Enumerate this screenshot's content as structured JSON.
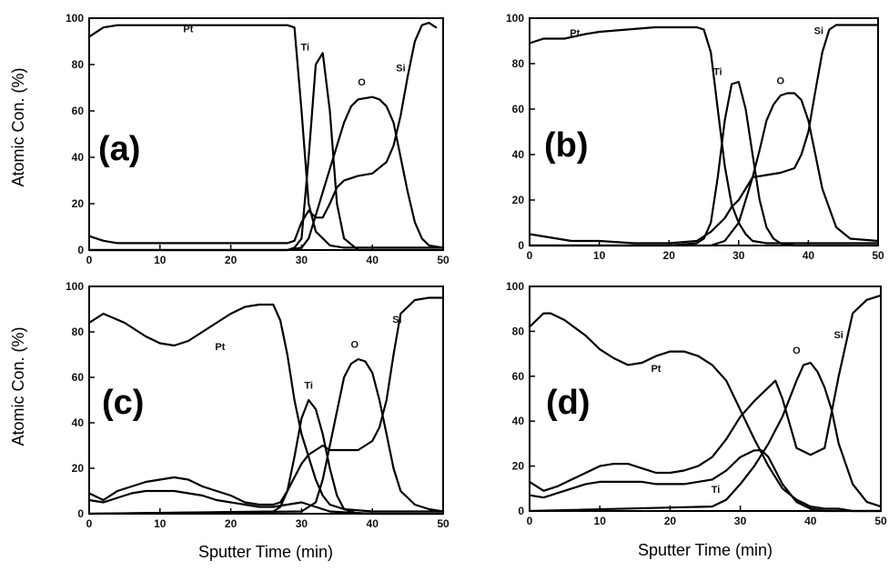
{
  "figure": {
    "ylabel": "Atomic Con. (%)",
    "xlabel": "Sputter Time (min)"
  },
  "chart_data": [
    {
      "type": "line",
      "panel_label": "(a)",
      "xlim": [
        0,
        50
      ],
      "ylim": [
        0,
        100
      ],
      "xticks": [
        0,
        10,
        20,
        30,
        40,
        50
      ],
      "yticks": [
        0,
        20,
        40,
        60,
        80,
        100
      ],
      "series": [
        {
          "name": "Pt",
          "x": [
            0,
            2,
            4,
            10,
            20,
            25,
            27,
            28,
            29,
            30,
            31,
            32,
            34,
            36,
            40,
            50
          ],
          "y": [
            92,
            96,
            97,
            97,
            97,
            97,
            97,
            97,
            96,
            60,
            20,
            8,
            2,
            1,
            1,
            1
          ]
        },
        {
          "name": "Ti",
          "x": [
            0,
            20,
            28,
            29,
            30,
            31,
            32,
            33,
            34,
            35,
            36,
            38,
            50
          ],
          "y": [
            0,
            0,
            0,
            1,
            5,
            40,
            80,
            85,
            60,
            20,
            5,
            0,
            0
          ]
        },
        {
          "name": "O",
          "x": [
            0,
            28,
            30,
            31,
            32,
            33,
            34,
            35,
            36,
            37,
            38,
            40,
            41,
            42,
            43,
            44,
            45,
            46,
            47,
            48,
            50
          ],
          "y": [
            0,
            0,
            1,
            5,
            15,
            25,
            35,
            45,
            55,
            62,
            65,
            66,
            65,
            62,
            55,
            40,
            25,
            12,
            5,
            2,
            1
          ]
        },
        {
          "name": "Si",
          "x": [
            0,
            2,
            4,
            10,
            20,
            28,
            29,
            30,
            31,
            32,
            33,
            34,
            35,
            36,
            38,
            40,
            42,
            43,
            44,
            45,
            46,
            47,
            48,
            49
          ],
          "y": [
            6,
            4,
            3,
            3,
            3,
            3,
            4,
            12,
            17,
            14,
            14,
            20,
            27,
            30,
            32,
            33,
            38,
            45,
            58,
            75,
            90,
            97,
            98,
            96
          ]
        }
      ],
      "labels": [
        {
          "text": "Pt",
          "x": 14,
          "y": 94
        },
        {
          "text": "Ti",
          "x": 30.5,
          "y": 86
        },
        {
          "text": "O",
          "x": 38.5,
          "y": 71
        },
        {
          "text": "Si",
          "x": 44,
          "y": 77
        }
      ]
    },
    {
      "type": "line",
      "panel_label": "(b)",
      "xlim": [
        0,
        50
      ],
      "ylim": [
        0,
        100
      ],
      "xticks": [
        0,
        10,
        20,
        30,
        40,
        50
      ],
      "yticks": [
        0,
        20,
        40,
        60,
        80,
        100
      ],
      "series": [
        {
          "name": "Pt",
          "x": [
            0,
            2,
            5,
            8,
            10,
            14,
            18,
            22,
            24,
            25,
            26,
            27,
            28,
            29,
            30,
            31,
            32,
            34,
            40,
            50
          ],
          "y": [
            89,
            91,
            91,
            93,
            94,
            95,
            96,
            96,
            96,
            95,
            85,
            60,
            35,
            18,
            10,
            5,
            2,
            1,
            1,
            1
          ]
        },
        {
          "name": "Ti",
          "x": [
            0,
            20,
            24,
            25,
            26,
            27,
            28,
            29,
            30,
            31,
            32,
            33,
            34,
            35,
            36,
            38,
            50
          ],
          "y": [
            0,
            0,
            1,
            3,
            10,
            30,
            55,
            71,
            72,
            60,
            40,
            20,
            8,
            3,
            1,
            0,
            0
          ]
        },
        {
          "name": "O",
          "x": [
            0,
            26,
            28,
            30,
            31,
            32,
            33,
            34,
            35,
            36,
            37,
            38,
            39,
            40,
            41,
            42,
            44,
            46,
            50
          ],
          "y": [
            0,
            0,
            2,
            10,
            20,
            30,
            42,
            55,
            62,
            66,
            67,
            67,
            64,
            55,
            40,
            25,
            8,
            3,
            2
          ]
        },
        {
          "name": "Si",
          "x": [
            0,
            2,
            4,
            6,
            8,
            10,
            15,
            20,
            24,
            26,
            28,
            29,
            30,
            31,
            32,
            34,
            36,
            38,
            39,
            40,
            41,
            42,
            43,
            44,
            46,
            50
          ],
          "y": [
            5,
            4,
            3,
            2,
            2,
            2,
            1,
            1,
            2,
            6,
            12,
            17,
            20,
            25,
            30,
            31,
            32,
            34,
            40,
            50,
            68,
            85,
            95,
            97,
            97,
            97
          ]
        }
      ],
      "labels": [
        {
          "text": "Pt",
          "x": 6.5,
          "y": 92
        },
        {
          "text": "Ti",
          "x": 27,
          "y": 75
        },
        {
          "text": "O",
          "x": 36,
          "y": 71
        },
        {
          "text": "Si",
          "x": 41.5,
          "y": 93
        }
      ]
    },
    {
      "type": "line",
      "panel_label": "(c)",
      "xlim": [
        0,
        50
      ],
      "ylim": [
        0,
        100
      ],
      "xticks": [
        0,
        10,
        20,
        30,
        40,
        50
      ],
      "yticks": [
        0,
        20,
        40,
        60,
        80,
        100
      ],
      "series": [
        {
          "name": "Pt",
          "x": [
            0,
            2,
            5,
            8,
            10,
            12,
            14,
            16,
            18,
            20,
            22,
            24,
            26,
            27,
            28,
            29,
            30,
            31,
            32,
            33,
            34,
            36,
            40,
            50
          ],
          "y": [
            84,
            88,
            84,
            78,
            75,
            74,
            76,
            80,
            84,
            88,
            91,
            92,
            92,
            85,
            70,
            50,
            35,
            25,
            15,
            8,
            4,
            2,
            1,
            1
          ]
        },
        {
          "name": "Ti",
          "x": [
            0,
            26,
            27,
            28,
            29,
            30,
            31,
            32,
            33,
            34,
            35,
            36,
            38,
            50
          ],
          "y": [
            0,
            1,
            3,
            10,
            25,
            42,
            50,
            46,
            35,
            20,
            8,
            2,
            0,
            0
          ]
        },
        {
          "name": "O",
          "x": [
            0,
            30,
            32,
            33,
            34,
            35,
            36,
            37,
            38,
            39,
            40,
            41,
            42,
            43,
            44,
            46,
            48,
            50
          ],
          "y": [
            0,
            1,
            5,
            15,
            30,
            45,
            60,
            66,
            68,
            67,
            62,
            50,
            35,
            20,
            10,
            4,
            2,
            1
          ]
        },
        {
          "name": "Si",
          "x": [
            0,
            2,
            4,
            8,
            10,
            12,
            14,
            16,
            18,
            20,
            22,
            24,
            26,
            27,
            28,
            29,
            30,
            31,
            32,
            33,
            34,
            35,
            36,
            37,
            38,
            39,
            40,
            41,
            42,
            43,
            44,
            46,
            48,
            50
          ],
          "y": [
            9,
            6,
            10,
            14,
            15,
            16,
            15,
            12,
            10,
            8,
            5,
            4,
            4,
            5,
            10,
            16,
            22,
            26,
            28,
            30,
            28,
            28,
            28,
            28,
            28,
            30,
            32,
            38,
            50,
            70,
            88,
            94,
            95,
            95
          ]
        },
        {
          "name": "",
          "x": [
            0,
            2,
            4,
            6,
            8,
            10,
            12,
            14,
            16,
            18,
            20,
            22,
            24,
            26,
            28,
            30,
            32,
            34,
            40,
            50
          ],
          "y": [
            6,
            5,
            7,
            9,
            10,
            10,
            10,
            9,
            8,
            6,
            5,
            4,
            3,
            3,
            4,
            5,
            3,
            1,
            0,
            0
          ]
        }
      ],
      "labels": [
        {
          "text": "Pt",
          "x": 18.5,
          "y": 72
        },
        {
          "text": "Ti",
          "x": 31,
          "y": 55
        },
        {
          "text": "O",
          "x": 37.5,
          "y": 73
        },
        {
          "text": "Si",
          "x": 43.5,
          "y": 84
        }
      ]
    },
    {
      "type": "line",
      "panel_label": "(d)",
      "xlim": [
        0,
        50
      ],
      "ylim": [
        0,
        100
      ],
      "xticks": [
        0,
        10,
        20,
        30,
        40,
        50
      ],
      "yticks": [
        0,
        20,
        40,
        60,
        80,
        100
      ],
      "series": [
        {
          "name": "Pt",
          "x": [
            0,
            2,
            3,
            5,
            8,
            10,
            12,
            14,
            16,
            18,
            20,
            22,
            24,
            26,
            28,
            30,
            32,
            34,
            36,
            38,
            40,
            42,
            44,
            46,
            48,
            50
          ],
          "y": [
            82,
            88,
            88,
            85,
            78,
            72,
            68,
            65,
            66,
            69,
            71,
            71,
            69,
            65,
            58,
            45,
            32,
            20,
            10,
            5,
            2,
            1,
            1,
            0,
            0,
            0
          ]
        },
        {
          "name": "Ti",
          "x": [
            0,
            2,
            4,
            6,
            8,
            10,
            12,
            14,
            16,
            18,
            20,
            22,
            24,
            26,
            28,
            30,
            32,
            33,
            34,
            36,
            38,
            40,
            42,
            44,
            50
          ],
          "y": [
            7,
            6,
            8,
            10,
            12,
            13,
            13,
            13,
            13,
            12,
            12,
            12,
            13,
            14,
            18,
            24,
            27,
            27,
            24,
            12,
            4,
            1,
            0,
            0,
            0
          ]
        },
        {
          "name": "O",
          "x": [
            0,
            26,
            28,
            30,
            32,
            34,
            36,
            38,
            39,
            40,
            41,
            42,
            43,
            44,
            46,
            48,
            50
          ],
          "y": [
            0,
            2,
            5,
            12,
            20,
            30,
            42,
            58,
            65,
            66,
            62,
            55,
            45,
            30,
            12,
            4,
            2
          ]
        },
        {
          "name": "Si",
          "x": [
            0,
            2,
            4,
            6,
            8,
            10,
            12,
            14,
            16,
            18,
            20,
            22,
            24,
            26,
            28,
            30,
            32,
            34,
            35,
            36,
            38,
            40,
            42,
            44,
            46,
            48,
            50
          ],
          "y": [
            13,
            9,
            11,
            14,
            17,
            20,
            21,
            21,
            19,
            17,
            17,
            18,
            20,
            24,
            32,
            42,
            49,
            55,
            58,
            50,
            28,
            25,
            28,
            60,
            88,
            94,
            96
          ]
        }
      ],
      "labels": [
        {
          "text": "Pt",
          "x": 18,
          "y": 62
        },
        {
          "text": "Ti",
          "x": 26.5,
          "y": 8
        },
        {
          "text": "O",
          "x": 38,
          "y": 70
        },
        {
          "text": "Si",
          "x": 44,
          "y": 77
        }
      ]
    }
  ]
}
